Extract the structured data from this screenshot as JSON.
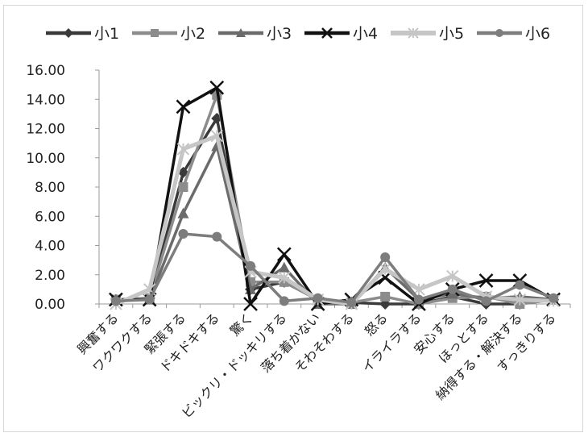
{
  "chart_data": {
    "type": "line",
    "categories": [
      "興奮する",
      "ワクワクする",
      "緊張する",
      "ドキドキする",
      "驚く",
      "ビックリ・ドッキリする",
      "落ち着かない",
      "そわそわする",
      "怒る",
      "イライラする",
      "安心する",
      "ほっとする",
      "納得する・解決する",
      "すっきりする"
    ],
    "ylim": [
      0,
      16
    ],
    "yticks": [
      "0.00",
      "2.00",
      "4.00",
      "6.00",
      "8.00",
      "10.00",
      "12.00",
      "14.00",
      "16.00"
    ],
    "grid": false,
    "legend_position": "top",
    "series": [
      {
        "name": "小1",
        "marker": "diamond",
        "color": "#3a3a3a",
        "values": [
          0.3,
          0.4,
          9.0,
          12.7,
          1.0,
          1.5,
          0.3,
          0.1,
          0.0,
          0.0,
          0.5,
          0.0,
          0.0,
          0.3
        ]
      },
      {
        "name": "小2",
        "marker": "square",
        "color": "#8c8c8c",
        "values": [
          0.3,
          0.4,
          8.0,
          14.3,
          1.5,
          1.5,
          0.3,
          0.1,
          0.5,
          0.0,
          0.4,
          0.5,
          0.0,
          0.3
        ]
      },
      {
        "name": "小3",
        "marker": "triangle",
        "color": "#6b6b6b",
        "values": [
          0.3,
          0.3,
          6.2,
          10.8,
          1.0,
          2.5,
          0.0,
          0.0,
          2.5,
          0.3,
          0.7,
          0.4,
          0.5,
          0.3
        ]
      },
      {
        "name": "小4",
        "marker": "x",
        "color": "#111111",
        "values": [
          0.3,
          0.3,
          13.5,
          14.8,
          0.0,
          3.4,
          0.0,
          0.3,
          1.8,
          0.0,
          1.0,
          1.6,
          1.6,
          0.3
        ]
      },
      {
        "name": "小5",
        "marker": "star",
        "color": "#c6c6c6",
        "values": [
          0.0,
          1.0,
          10.6,
          11.5,
          2.2,
          1.8,
          0.3,
          0.0,
          2.4,
          1.0,
          1.9,
          0.5,
          0.3,
          0.2
        ]
      },
      {
        "name": "小6",
        "marker": "circle",
        "color": "#7d7d7d",
        "values": [
          0.2,
          0.3,
          4.8,
          4.6,
          2.6,
          0.2,
          0.4,
          0.1,
          3.2,
          0.3,
          1.0,
          0.2,
          1.3,
          0.4
        ]
      }
    ]
  }
}
